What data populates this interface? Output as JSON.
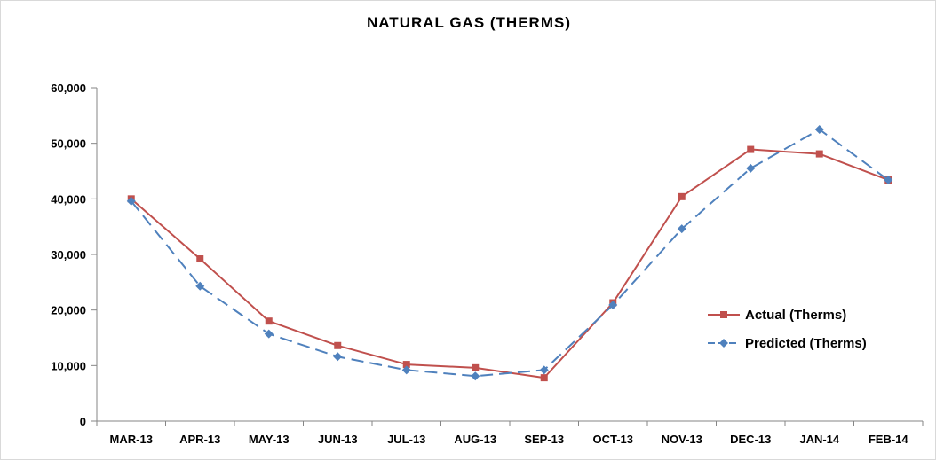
{
  "chart_data": {
    "type": "line",
    "title": "NATURAL GAS (THERMS)",
    "xlabel": "",
    "ylabel": "",
    "categories": [
      "MAR-13",
      "APR-13",
      "MAY-13",
      "JUN-13",
      "JUL-13",
      "AUG-13",
      "SEP-13",
      "OCT-13",
      "NOV-13",
      "DEC-13",
      "JAN-14",
      "FEB-14"
    ],
    "ylim": [
      0,
      60000
    ],
    "yticks": [
      0,
      10000,
      20000,
      30000,
      40000,
      50000,
      60000
    ],
    "ytick_labels": [
      "0",
      "10,000",
      "20,000",
      "30,000",
      "40,000",
      "50,000",
      "60,000"
    ],
    "grid": false,
    "legend_position": "right",
    "series": [
      {
        "name": "Actual (Therms)",
        "color": "#c0504d",
        "line_style": "solid",
        "marker": "square",
        "values": [
          40000,
          29200,
          18000,
          13600,
          10200,
          9600,
          7800,
          21300,
          40400,
          48900,
          48100,
          43400
        ]
      },
      {
        "name": "Predicted (Therms)",
        "color": "#4f81bd",
        "line_style": "dashed",
        "marker": "diamond",
        "values": [
          39600,
          24300,
          15700,
          11600,
          9200,
          8100,
          9200,
          20900,
          34600,
          45500,
          52500,
          43400
        ]
      }
    ]
  }
}
